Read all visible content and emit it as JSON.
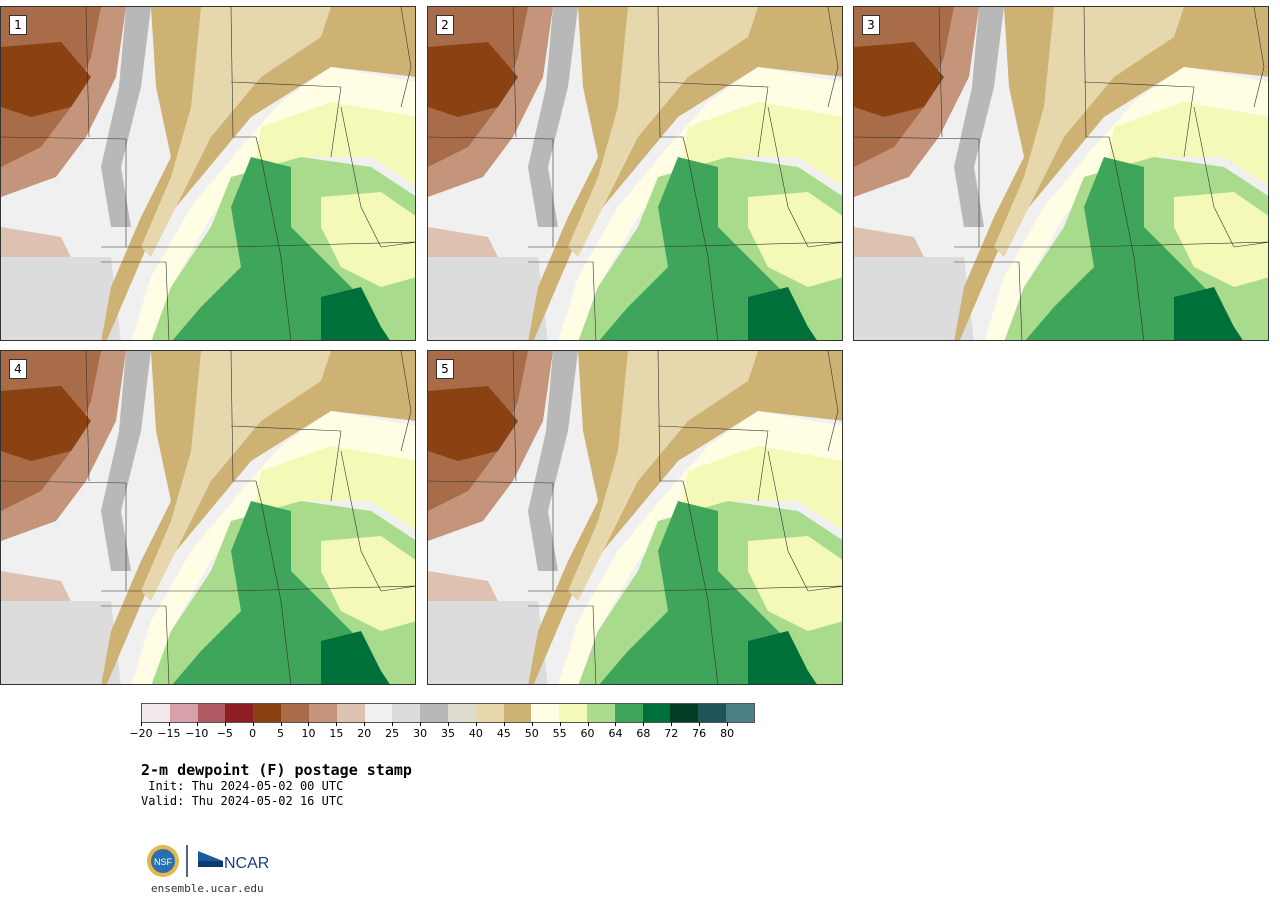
{
  "panels": [
    {
      "label": "1"
    },
    {
      "label": "2"
    },
    {
      "label": "3"
    },
    {
      "label": "4"
    },
    {
      "label": "5"
    }
  ],
  "colorbar": {
    "colors": [
      "#f3e9ec",
      "#d6a1a8",
      "#b25a63",
      "#8e1d24",
      "#8b4213",
      "#a96c48",
      "#c4957b",
      "#ddc2b1",
      "#f0f0f0",
      "#dcdcdc",
      "#b8b8b8",
      "#dedcd0",
      "#e7d7ac",
      "#cdb273",
      "#fffde3",
      "#f5f9b7",
      "#a8dc8c",
      "#3fa55b",
      "#00703a",
      "#003d24",
      "#1f5558",
      "#4d7f86"
    ],
    "tick_labels": [
      "−20",
      "−15",
      "−10",
      "−5",
      "0",
      "5",
      "10",
      "15",
      "20",
      "25",
      "30",
      "35",
      "40",
      "45",
      "50",
      "55",
      "60",
      "64",
      "68",
      "72",
      "76",
      "80"
    ]
  },
  "title": "2-m dewpoint (F) postage stamp",
  "init": " Init: Thu 2024-05-02 00 UTC",
  "valid": "Valid: Thu 2024-05-02 16 UTC",
  "logo": {
    "left": "NSF",
    "right": "NCAR"
  },
  "site": "ensemble.ucar.edu"
}
